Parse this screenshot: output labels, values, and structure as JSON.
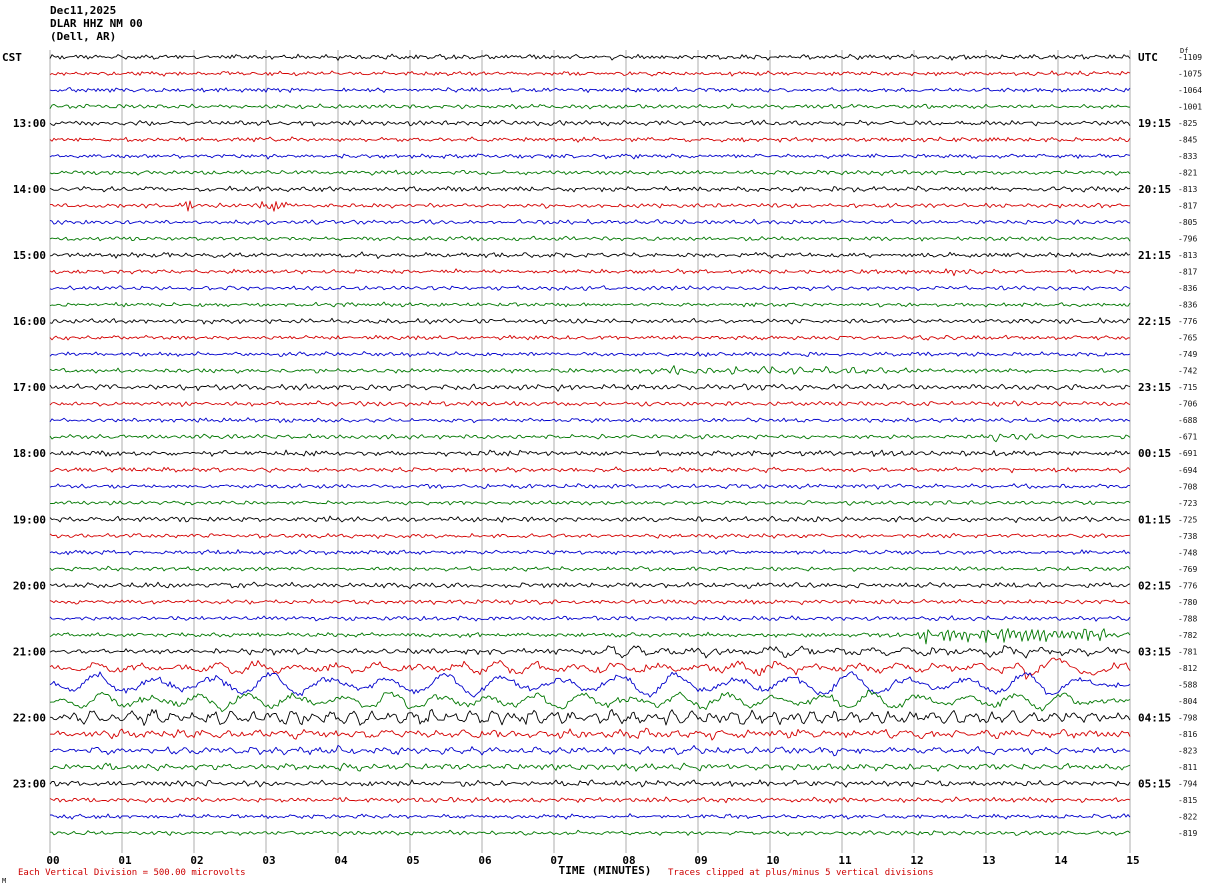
{
  "header": {
    "date": "Dec11,2025",
    "station": "DLAR HHZ NM 00",
    "location": "(Dell, AR)"
  },
  "axes": {
    "left_label": "CST",
    "right_label": "UTC",
    "right_small_label": "Df",
    "x_label": "TIME (MINUTES)",
    "minute_ticks": [
      "00",
      "01",
      "02",
      "03",
      "04",
      "05",
      "06",
      "07",
      "08",
      "09",
      "10",
      "11",
      "12",
      "13",
      "14",
      "15"
    ]
  },
  "footer": {
    "scale_note": "Each Vertical Division =  500.00 microvolts",
    "clip_note": "Traces clipped at plus/minus 5 vertical divisions",
    "corner_mark": "M"
  },
  "chart_data": {
    "type": "line",
    "subtype": "helicorder-seismogram",
    "station": "DLAR HHZ NM 00",
    "location": "Dell, AR",
    "date": "Dec11,2025",
    "x_range_minutes": [
      0,
      15
    ],
    "minutes_per_line": 15,
    "lines": 48,
    "first_line_cst": "12:00",
    "last_line_cst": "23:45",
    "units_note": "Each Vertical Division = 500.00 microvolts",
    "clip_note": "Traces clipped at plus/minus 5 vertical divisions",
    "trace_colors_cycle": [
      "black",
      "red",
      "blue",
      "green"
    ],
    "palette": {
      "black": "#000000",
      "red": "#d40000",
      "blue": "#0000cc",
      "green": "#007700"
    },
    "grid_color": "#9a9a9a",
    "rows": [
      {
        "t": "12:00",
        "c": 0,
        "dc": "-1109",
        "a": 1.7
      },
      {
        "t": "12:15",
        "c": 1,
        "dc": "-1075",
        "a": 1.5
      },
      {
        "t": "12:30",
        "c": 2,
        "dc": "-1064",
        "a": 1.5
      },
      {
        "t": "12:45",
        "c": 3,
        "dc": "-1001",
        "a": 1.5
      },
      {
        "t": "13:00",
        "c": 0,
        "dc": "-825",
        "lbl": "13:00",
        "utc": "19:15",
        "a": 1.7
      },
      {
        "t": "13:15",
        "c": 1,
        "dc": "-845",
        "a": 1.5
      },
      {
        "t": "13:30",
        "c": 2,
        "dc": "-833",
        "a": 1.5
      },
      {
        "t": "13:45",
        "c": 3,
        "dc": "-821",
        "a": 1.5
      },
      {
        "t": "14:00",
        "c": 0,
        "dc": "-813",
        "lbl": "14:00",
        "utc": "20:15",
        "a": 1.7
      },
      {
        "t": "14:15",
        "c": 1,
        "dc": "-817",
        "a": 1.5,
        "ev": [
          {
            "t0": 0.115,
            "t1": 0.14,
            "amp": 4.5,
            "wl": 5,
            "jit": 4
          },
          {
            "t0": 0.19,
            "t1": 0.22,
            "amp": 5,
            "wl": 5,
            "jit": 5
          }
        ]
      },
      {
        "t": "14:30",
        "c": 2,
        "dc": "-805",
        "a": 1.5
      },
      {
        "t": "14:45",
        "c": 3,
        "dc": "-796",
        "a": 1.4
      },
      {
        "t": "15:00",
        "c": 0,
        "dc": "-813",
        "lbl": "15:00",
        "utc": "21:15",
        "a": 1.7
      },
      {
        "t": "15:15",
        "c": 1,
        "dc": "-817",
        "a": 1.5,
        "ev": [
          {
            "t0": 0.82,
            "t1": 0.85,
            "amp": 2.5,
            "wl": 6,
            "jit": 2
          }
        ]
      },
      {
        "t": "15:30",
        "c": 2,
        "dc": "-836",
        "a": 1.5
      },
      {
        "t": "15:45",
        "c": 3,
        "dc": "-836",
        "a": 1.4
      },
      {
        "t": "16:00",
        "c": 0,
        "dc": "-776",
        "lbl": "16:00",
        "utc": "22:15",
        "a": 1.7
      },
      {
        "t": "16:15",
        "c": 1,
        "dc": "-765",
        "a": 1.5
      },
      {
        "t": "16:30",
        "c": 2,
        "dc": "-749",
        "a": 1.5
      },
      {
        "t": "16:45",
        "c": 3,
        "dc": "-742",
        "a": 1.5,
        "ev": [
          {
            "t0": 0.55,
            "t1": 0.78,
            "amp": 2.2,
            "wl": 9,
            "jit": 2.5
          }
        ]
      },
      {
        "t": "17:00",
        "c": 0,
        "dc": "-715",
        "lbl": "17:00",
        "utc": "23:15",
        "a": 2.1
      },
      {
        "t": "17:15",
        "c": 1,
        "dc": "-706",
        "a": 1.6
      },
      {
        "t": "17:30",
        "c": 2,
        "dc": "-688",
        "a": 1.5
      },
      {
        "t": "17:45",
        "c": 3,
        "dc": "-671",
        "a": 1.5,
        "ev": [
          {
            "t0": 0.86,
            "t1": 0.95,
            "amp": 2,
            "wl": 10,
            "jit": 2
          }
        ]
      },
      {
        "t": "18:00",
        "c": 0,
        "dc": "-691",
        "lbl": "18:00",
        "utc": "00:15",
        "a": 1.9
      },
      {
        "t": "18:15",
        "c": 1,
        "dc": "-694",
        "a": 1.6
      },
      {
        "t": "18:30",
        "c": 2,
        "dc": "-708",
        "a": 1.5
      },
      {
        "t": "18:45",
        "c": 3,
        "dc": "-723",
        "a": 1.4
      },
      {
        "t": "19:00",
        "c": 0,
        "dc": "-725",
        "lbl": "19:00",
        "utc": "01:15",
        "a": 1.8
      },
      {
        "t": "19:15",
        "c": 1,
        "dc": "-738",
        "a": 1.5
      },
      {
        "t": "19:30",
        "c": 2,
        "dc": "-748",
        "a": 1.5
      },
      {
        "t": "19:45",
        "c": 3,
        "dc": "-769",
        "a": 1.4
      },
      {
        "t": "20:00",
        "c": 0,
        "dc": "-776",
        "lbl": "20:00",
        "utc": "02:15",
        "a": 1.8
      },
      {
        "t": "20:15",
        "c": 1,
        "dc": "-780",
        "a": 1.5
      },
      {
        "t": "20:30",
        "c": 2,
        "dc": "-788",
        "a": 1.5
      },
      {
        "t": "20:45",
        "c": 3,
        "dc": "-782",
        "a": 1.5,
        "ev": [
          {
            "t0": 0.8,
            "t1": 0.995,
            "amp": 6,
            "wl": 6,
            "jit": 5
          }
        ]
      },
      {
        "t": "21:00",
        "c": 0,
        "dc": "-781",
        "lbl": "21:00",
        "utc": "03:15",
        "a": 2.0,
        "ev": [
          {
            "t0": 0.5,
            "t1": 0.62,
            "amp": 5,
            "wl": 28,
            "jit": 1.5
          },
          {
            "t0": 0.62,
            "t1": 1.0,
            "amp": 3.5,
            "wl": 34,
            "jit": 2
          }
        ]
      },
      {
        "t": "21:15",
        "c": 1,
        "dc": "-812",
        "a": 2.2,
        "ev": [
          {
            "t0": 0.0,
            "t1": 0.92,
            "amp": 4.5,
            "wl": 40,
            "jit": 2.5
          },
          {
            "t0": 0.9,
            "t1": 1.0,
            "amp": 9,
            "wl": 70,
            "jit": 2
          }
        ]
      },
      {
        "t": "21:30",
        "c": 2,
        "dc": "-588",
        "a": 2.0,
        "ev": [
          {
            "t0": 0.0,
            "t1": 1.0,
            "amp": 10.5,
            "wl": 58,
            "jit": 2
          }
        ]
      },
      {
        "t": "21:45",
        "c": 3,
        "dc": "-804",
        "a": 2.0,
        "ev": [
          {
            "t0": 0.0,
            "t1": 1.0,
            "amp": 7.5,
            "wl": 48,
            "jit": 2.5
          }
        ]
      },
      {
        "t": "22:00",
        "c": 0,
        "dc": "-798",
        "lbl": "22:00",
        "utc": "04:15",
        "a": 2.6,
        "ev": [
          {
            "t0": 0.0,
            "t1": 1.0,
            "amp": 5.5,
            "wl": 20,
            "jit": 4
          }
        ]
      },
      {
        "t": "22:15",
        "c": 1,
        "dc": "-816",
        "a": 2.2,
        "ev": [
          {
            "t0": 0.0,
            "t1": 1.0,
            "amp": 3,
            "wl": 26,
            "jit": 2.5
          }
        ]
      },
      {
        "t": "22:30",
        "c": 2,
        "dc": "-823",
        "a": 1.9,
        "ev": [
          {
            "t0": 0.0,
            "t1": 1.0,
            "amp": 2,
            "wl": 22,
            "jit": 1.5
          }
        ]
      },
      {
        "t": "22:45",
        "c": 3,
        "dc": "-811",
        "a": 1.8,
        "ev": [
          {
            "t0": 0.0,
            "t1": 1.0,
            "amp": 1.5,
            "wl": 20,
            "jit": 1.5
          }
        ]
      },
      {
        "t": "23:00",
        "c": 0,
        "dc": "-794",
        "lbl": "23:00",
        "utc": "05:15",
        "a": 2.0
      },
      {
        "t": "23:15",
        "c": 1,
        "dc": "-815",
        "a": 1.7
      },
      {
        "t": "23:30",
        "c": 2,
        "dc": "-822",
        "a": 1.5
      },
      {
        "t": "23:45",
        "c": 3,
        "dc": "-819",
        "a": 1.5
      }
    ]
  }
}
